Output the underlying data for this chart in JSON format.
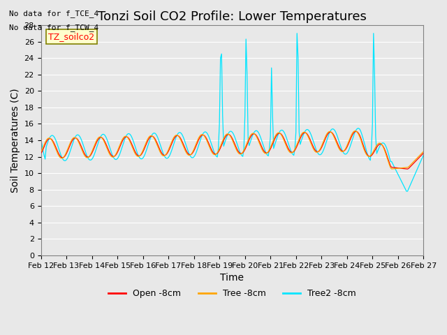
{
  "title": "Tonzi Soil CO2 Profile: Lower Temperatures",
  "xlabel": "Time",
  "ylabel": "Soil Temperatures (C)",
  "annotation_lines": [
    "No data for f_TCE_4",
    "No data for f_TCW_4"
  ],
  "box_label": "TZ_soilco2",
  "legend_labels": [
    "Open -8cm",
    "Tree -8cm",
    "Tree2 -8cm"
  ],
  "legend_colors": [
    "#ff0000",
    "#ffa500",
    "#00e5ff"
  ],
  "xtick_labels": [
    "Feb 12",
    "Feb 13",
    "Feb 14",
    "Feb 15",
    "Feb 16",
    "Feb 17",
    "Feb 18",
    "Feb 19",
    "Feb 20",
    "Feb 21",
    "Feb 22",
    "Feb 23",
    "Feb 24",
    "Feb 25",
    "Feb 26",
    "Feb 27"
  ],
  "ylim": [
    0,
    28
  ],
  "yticks": [
    0,
    2,
    4,
    6,
    8,
    10,
    12,
    14,
    16,
    18,
    20,
    22,
    24,
    26,
    28
  ],
  "background_color": "#e8e8e8",
  "plot_bg_color": "#e8e8e8",
  "title_fontsize": 13,
  "axis_label_fontsize": 10,
  "tick_fontsize": 8,
  "n_points": 361
}
